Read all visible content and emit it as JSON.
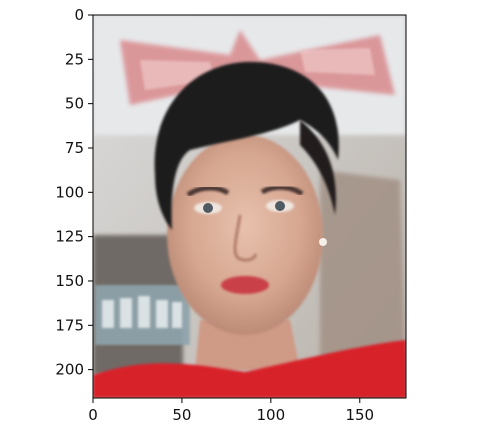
{
  "figure": {
    "kind": "image-axes",
    "image_description_icon": "portrait-image",
    "x_ticks": [
      0,
      50,
      100,
      150
    ],
    "y_ticks": [
      0,
      25,
      50,
      75,
      100,
      125,
      150,
      175,
      200
    ],
    "x_range": [
      0,
      176
    ],
    "y_range": [
      0,
      216
    ],
    "y_inverted": true,
    "colors": {
      "axis": "#000000",
      "tick_text": "#111111",
      "background": "#ffffff"
    }
  }
}
